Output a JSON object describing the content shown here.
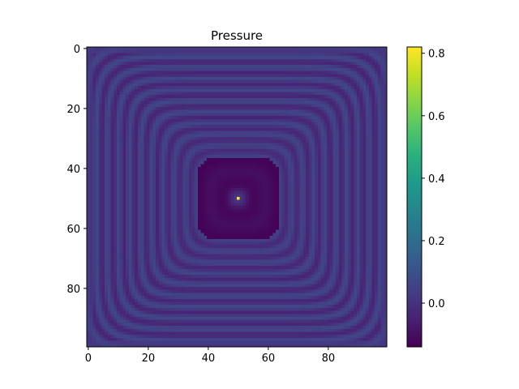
{
  "chart_data": {
    "type": "heatmap",
    "title": "Pressure",
    "xlabel": "",
    "ylabel": "",
    "grid": false,
    "grid_size": [
      100,
      100
    ],
    "xlim": [
      -0.5,
      99.5
    ],
    "ylim": [
      99.5,
      -0.5
    ],
    "x_ticks": [
      0,
      20,
      40,
      60,
      80
    ],
    "y_ticks": [
      0,
      20,
      40,
      60,
      80
    ],
    "colormap": "viridis",
    "source_point": [
      50,
      50
    ],
    "value_range": [
      -0.14,
      0.82
    ],
    "colorbar_ticks": [
      0.0,
      0.2,
      0.4,
      0.6,
      0.8
    ],
    "colorbar_tick_labels": [
      "0.0",
      "0.2",
      "0.4",
      "0.6",
      "0.8"
    ],
    "colorbar_placement": "right"
  }
}
